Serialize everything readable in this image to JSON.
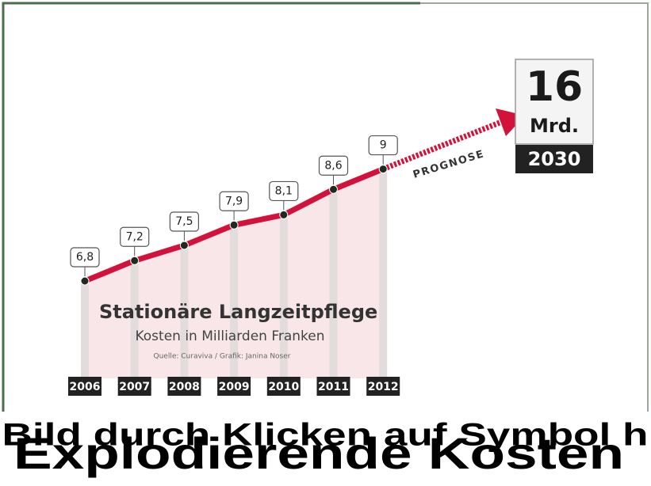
{
  "chart_data": {
    "type": "line",
    "title": "Stationäre Langzeitpflege",
    "subtitle": "Kosten in Milliarden Franken",
    "source": "Quelle: Curaviva / Grafik: Janina Noser",
    "categories": [
      "2006",
      "2007",
      "2008",
      "2009",
      "2010",
      "2011",
      "2012"
    ],
    "values": [
      6.8,
      7.2,
      7.5,
      7.9,
      8.1,
      8.6,
      9
    ],
    "value_labels": [
      "6,8",
      "7,2",
      "7,5",
      "7,9",
      "8,1",
      "8,6",
      "9"
    ],
    "color": "#d2123a",
    "ylim": [
      4.7,
      11.7
    ],
    "prognosis": {
      "label": "PROGNOSE",
      "value": 16,
      "value_label": "16",
      "unit": "Mrd.",
      "year": "2030"
    },
    "overlay_texts": [
      "Bild durch Klicken auf Symbol h",
      "Explodierende Kosten"
    ]
  }
}
